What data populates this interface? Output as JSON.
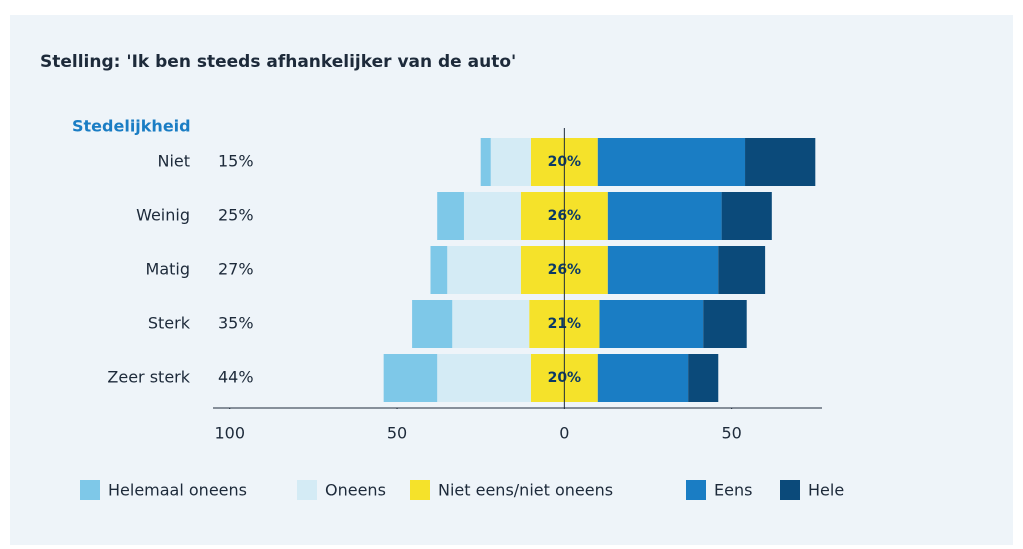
{
  "chart_data": {
    "type": "diverging_bar",
    "title": "Stelling: 'Ik ben steeds afhankelijker van de auto'",
    "category_axis_label": "Stedelijkheid",
    "categories": [
      "Niet",
      "Weinig",
      "Matig",
      "Sterk",
      "Zeer sterk"
    ],
    "series": [
      {
        "name": "Helemaal oneens",
        "color": "#7ec8e8",
        "values": [
          3,
          8,
          5,
          12,
          16
        ]
      },
      {
        "name": "Oneens",
        "color": "#d4ebf5",
        "values": [
          12,
          17,
          22,
          23,
          28
        ]
      },
      {
        "name": "Niet eens/niet oneens",
        "color": "#f5e22a",
        "values": [
          20,
          26,
          26,
          21,
          20
        ],
        "value_labels": [
          "20%",
          "26%",
          "26%",
          "21%",
          "20%"
        ]
      },
      {
        "name": "Eens",
        "color": "#1a7dc4",
        "values": [
          44,
          34,
          33,
          31,
          27
        ]
      },
      {
        "name": "Hele",
        "color": "#0b4a7a",
        "values": [
          21,
          15,
          14,
          13,
          9
        ]
      }
    ],
    "totals": {
      "values": [
        15,
        25,
        27,
        35,
        44
      ],
      "value_labels": [
        "15%",
        "25%",
        "27%",
        "35%",
        "44%"
      ]
    },
    "xlim": [
      -105,
      77
    ],
    "xticks": [
      {
        "value": -100,
        "label": "100"
      },
      {
        "value": -50,
        "label": "50"
      },
      0,
      50
    ]
  }
}
